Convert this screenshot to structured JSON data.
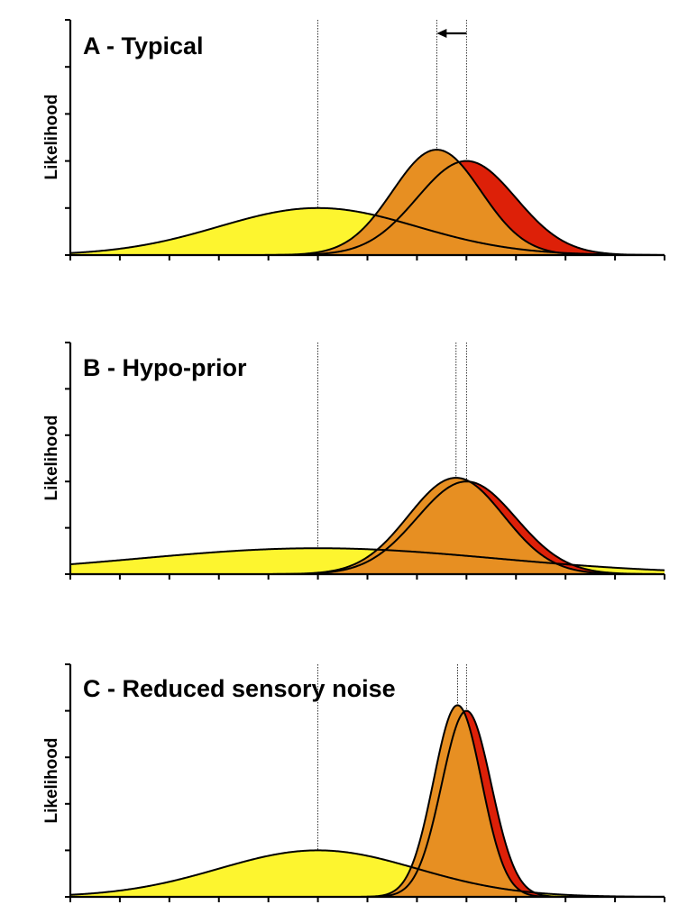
{
  "colors": {
    "prior": "#fdf52f",
    "likelihood": "#dd2008",
    "posterior": "#e78f22",
    "outline": "#000000"
  },
  "chart_data": [
    {
      "type": "area",
      "title": "A - Typical",
      "ylabel": "Likelihood",
      "xlim": [
        0,
        12
      ],
      "ylim": [
        0,
        5
      ],
      "grid": false,
      "arrow": {
        "from": 8,
        "to": 7.4
      },
      "series": [
        {
          "role": "prior",
          "mean": 5,
          "sd": 2,
          "peak": 1
        },
        {
          "role": "likelihood",
          "mean": 8,
          "sd": 1,
          "peak": 2
        },
        {
          "role": "posterior",
          "mean": 7.4,
          "sd": 0.894,
          "peak": 2.24
        }
      ]
    },
    {
      "type": "area",
      "title": "B - Hypo-prior",
      "ylabel": "Likelihood",
      "xlim": [
        0,
        12
      ],
      "ylim": [
        0,
        5
      ],
      "grid": false,
      "series": [
        {
          "role": "prior",
          "mean": 5,
          "sd": 3.6,
          "peak": 0.56
        },
        {
          "role": "likelihood",
          "mean": 8,
          "sd": 1,
          "peak": 2
        },
        {
          "role": "posterior",
          "mean": 7.79,
          "sd": 0.963,
          "peak": 2.08
        }
      ]
    },
    {
      "type": "area",
      "title": "C - Reduced sensory noise",
      "ylabel": "Likelihood",
      "xlim": [
        0,
        12
      ],
      "ylim": [
        0,
        5
      ],
      "grid": false,
      "series": [
        {
          "role": "prior",
          "mean": 5,
          "sd": 2,
          "peak": 1
        },
        {
          "role": "likelihood",
          "mean": 8,
          "sd": 0.5,
          "peak": 4
        },
        {
          "role": "posterior",
          "mean": 7.82,
          "sd": 0.485,
          "peak": 4.12
        }
      ]
    }
  ]
}
